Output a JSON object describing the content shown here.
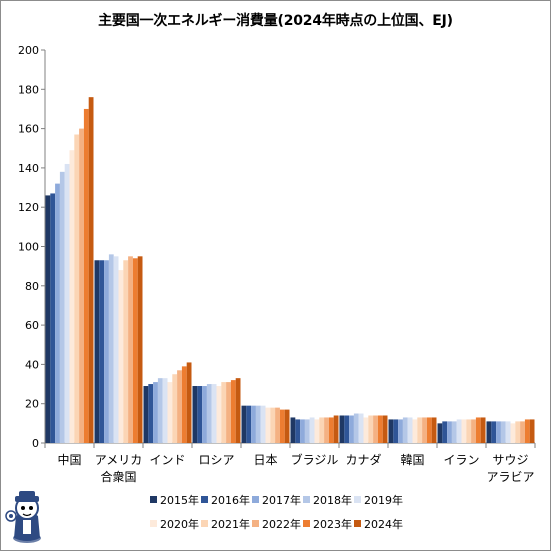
{
  "chart_data": {
    "type": "bar",
    "title": "主要国一次エネルギー消費量(2024年時点の上位国、EJ)",
    "xlabel": "",
    "ylabel": "",
    "ylim": [
      0,
      200
    ],
    "yticks": [
      0,
      20,
      40,
      60,
      80,
      100,
      120,
      140,
      160,
      180,
      200
    ],
    "grid": false,
    "legend_position": "bottom",
    "categories": [
      [
        "中国"
      ],
      [
        "アメリカ",
        "合衆国"
      ],
      [
        "インド"
      ],
      [
        "ロシア"
      ],
      [
        "日本"
      ],
      [
        "ブラジル"
      ],
      [
        "カナダ"
      ],
      [
        "韓国"
      ],
      [
        "イラン"
      ],
      [
        "サウジ",
        "アラビア"
      ]
    ],
    "series": [
      {
        "name": "2015年",
        "color": "#1f3864",
        "values": [
          126,
          93,
          29,
          29,
          19,
          13,
          14,
          12,
          10,
          11
        ]
      },
      {
        "name": "2016年",
        "color": "#2f5597",
        "values": [
          127,
          93,
          30,
          29,
          19,
          12,
          14,
          12,
          11,
          11
        ]
      },
      {
        "name": "2017年",
        "color": "#8eaadb",
        "values": [
          132,
          93,
          31,
          29,
          19,
          12,
          14,
          12,
          11,
          11
        ]
      },
      {
        "name": "2018年",
        "color": "#b4c7e7",
        "values": [
          138,
          96,
          33,
          30,
          19,
          12,
          15,
          13,
          11,
          11
        ]
      },
      {
        "name": "2019年",
        "color": "#dae3f3",
        "values": [
          142,
          95,
          33,
          30,
          19,
          13,
          15,
          13,
          12,
          11
        ]
      },
      {
        "name": "2020年",
        "color": "#fdeadb",
        "values": [
          149,
          88,
          31,
          29,
          18,
          12,
          13,
          12,
          12,
          10
        ]
      },
      {
        "name": "2021年",
        "color": "#fbd5b5",
        "values": [
          157,
          93,
          35,
          31,
          18,
          13,
          14,
          13,
          12,
          11
        ]
      },
      {
        "name": "2022年",
        "color": "#f4b183",
        "values": [
          160,
          95,
          37,
          31,
          18,
          13,
          14,
          13,
          12,
          11
        ]
      },
      {
        "name": "2023年",
        "color": "#ed7d31",
        "values": [
          170,
          94,
          39,
          32,
          17,
          13,
          14,
          13,
          13,
          12
        ]
      },
      {
        "name": "2024年",
        "color": "#c55a11",
        "values": [
          176,
          95,
          41,
          33,
          17,
          14,
          14,
          13,
          13,
          12
        ]
      }
    ]
  }
}
